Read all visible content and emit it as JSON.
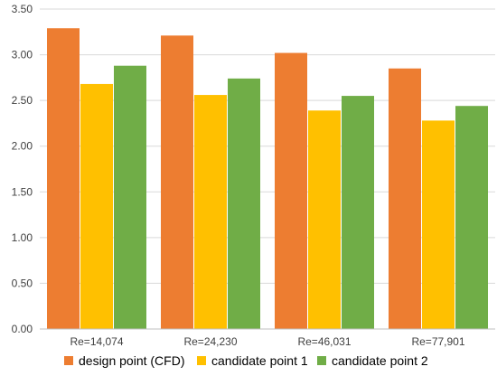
{
  "chart_data": {
    "type": "bar",
    "title": "",
    "xlabel": "",
    "ylabel": "",
    "ylim": [
      0,
      3.5
    ],
    "yticks": [
      "0.00",
      "0.50",
      "1.00",
      "1.50",
      "2.00",
      "2.50",
      "3.00",
      "3.50"
    ],
    "grid": true,
    "legend_position": "bottom",
    "categories": [
      "Re=14,074",
      "Re=24,230",
      "Re=46,031",
      "Re=77,901"
    ],
    "series": [
      {
        "name": "design point (CFD)",
        "color": "#ED7D31",
        "values": [
          3.29,
          3.21,
          3.02,
          2.85
        ]
      },
      {
        "name": "candidate point 1",
        "color": "#FFC000",
        "values": [
          2.68,
          2.56,
          2.39,
          2.28
        ]
      },
      {
        "name": "candidate point 2",
        "color": "#70AD47",
        "values": [
          2.88,
          2.74,
          2.55,
          2.44
        ]
      }
    ]
  }
}
